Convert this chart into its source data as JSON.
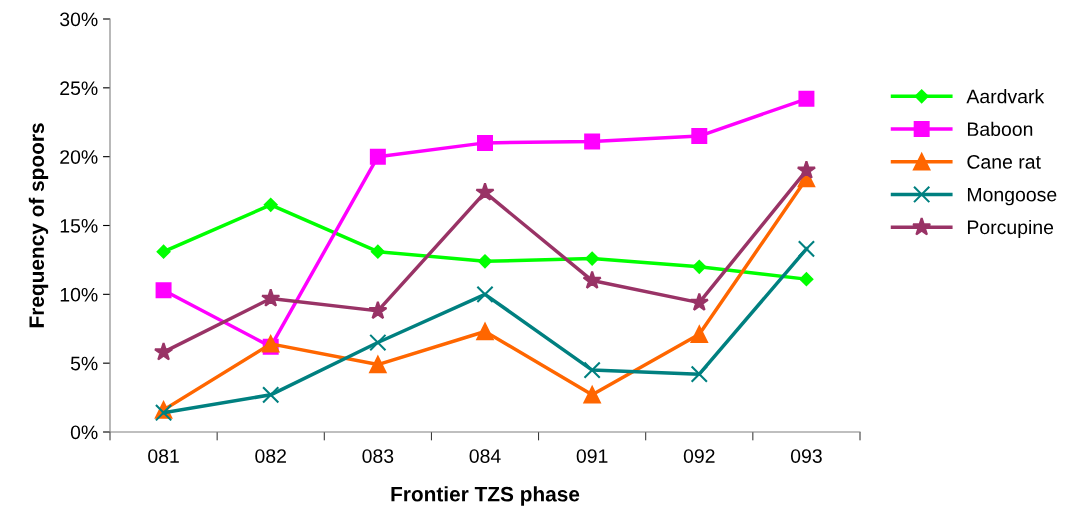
{
  "chart_data": {
    "type": "line",
    "xlabel": "Frontier TZS phase",
    "ylabel": "Frequency of spoors",
    "categories": [
      "081",
      "082",
      "083",
      "084",
      "091",
      "092",
      "093"
    ],
    "series": [
      {
        "name": "Aardvark",
        "color": "#00ff00",
        "marker": "diamond",
        "values": [
          13.1,
          16.5,
          13.1,
          12.4,
          12.6,
          12.0,
          11.1
        ]
      },
      {
        "name": "Baboon",
        "color": "#ff00ff",
        "marker": "square",
        "values": [
          10.3,
          6.2,
          20.0,
          21.0,
          21.1,
          21.5,
          24.2
        ]
      },
      {
        "name": "Cane rat",
        "color": "#ff6600",
        "marker": "triangle",
        "values": [
          1.6,
          6.4,
          4.9,
          7.3,
          2.7,
          7.1,
          18.4
        ]
      },
      {
        "name": "Mongoose",
        "color": "#008080",
        "marker": "cross",
        "values": [
          1.4,
          2.7,
          6.5,
          10.0,
          4.5,
          4.2,
          13.3
        ]
      },
      {
        "name": "Porcupine",
        "color": "#993366",
        "marker": "star",
        "values": [
          5.8,
          9.7,
          8.8,
          17.4,
          11.0,
          9.4,
          19.0
        ]
      }
    ],
    "ylim": [
      0,
      30
    ],
    "yticks": [
      {
        "value": 0,
        "label": "0%"
      },
      {
        "value": 5,
        "label": "5%"
      },
      {
        "value": 10,
        "label": "10%"
      },
      {
        "value": 15,
        "label": "15%"
      },
      {
        "value": 20,
        "label": "20%"
      },
      {
        "value": 25,
        "label": "25%"
      },
      {
        "value": 30,
        "label": "30%"
      }
    ],
    "grid": false,
    "legend": "right",
    "line_style": "solid"
  }
}
